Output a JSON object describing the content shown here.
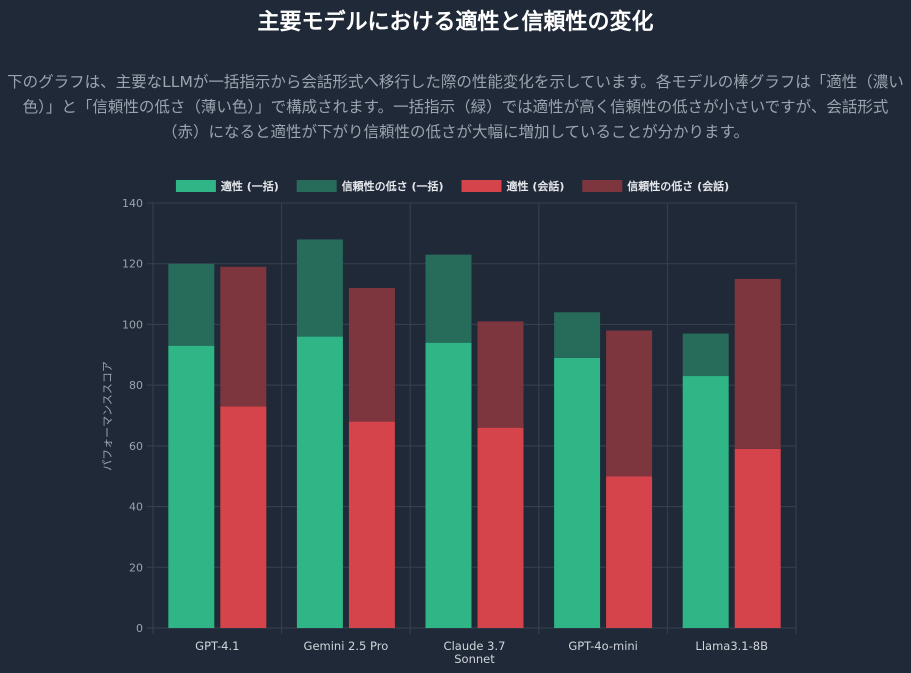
{
  "page": {
    "title": "主要モデルにおける適性と信頼性の変化",
    "description": "下のグラフは、主要なLLMが一括指示から会話形式へ移行した際の性能変化を示しています。各モデルの棒グラフは「適性（濃い色）」と「信頼性の低さ（薄い色）」で構成されます。一括指示（緑）では適性が高く信頼性の低さが小さいですが、会話形式（赤）になると適性が下がり信頼性の低さが大幅に増加していることが分かります。"
  },
  "colors": {
    "background": "#1f2937",
    "green_aptitude": "#2fb586",
    "green_unreliability": "#276b5b",
    "red_aptitude": "#d5444a",
    "red_unreliability": "#7d363e",
    "grid": "#374151",
    "text": "#d1d5db"
  },
  "chart_data": {
    "type": "bar",
    "stacked": true,
    "categories": [
      [
        "GPT-4.1"
      ],
      [
        "Gemini 2.5 Pro"
      ],
      [
        "Claude 3.7",
        "Sonnet"
      ],
      [
        "GPT-4o-mini"
      ],
      [
        "Llama3.1-8B"
      ]
    ],
    "ylabel": "パフォーマンススコア",
    "xlabel": "",
    "ylim": [
      0,
      140
    ],
    "yticks": [
      0,
      20,
      40,
      60,
      80,
      100,
      120,
      140
    ],
    "grid": true,
    "legend_position": "top",
    "series": [
      {
        "name": "適性 (一括)",
        "stack": "一括",
        "color": "#2fb586",
        "values": [
          93,
          96,
          94,
          89,
          83
        ]
      },
      {
        "name": "信頼性の低さ (一括)",
        "stack": "一括",
        "color": "#276b5b",
        "values": [
          27,
          32,
          29,
          15,
          14
        ]
      },
      {
        "name": "適性 (会話)",
        "stack": "会話",
        "color": "#d5444a",
        "values": [
          73,
          68,
          66,
          50,
          59
        ]
      },
      {
        "name": "信頼性の低さ (会話)",
        "stack": "会話",
        "color": "#7d363e",
        "values": [
          46,
          44,
          35,
          48,
          56
        ]
      }
    ]
  }
}
